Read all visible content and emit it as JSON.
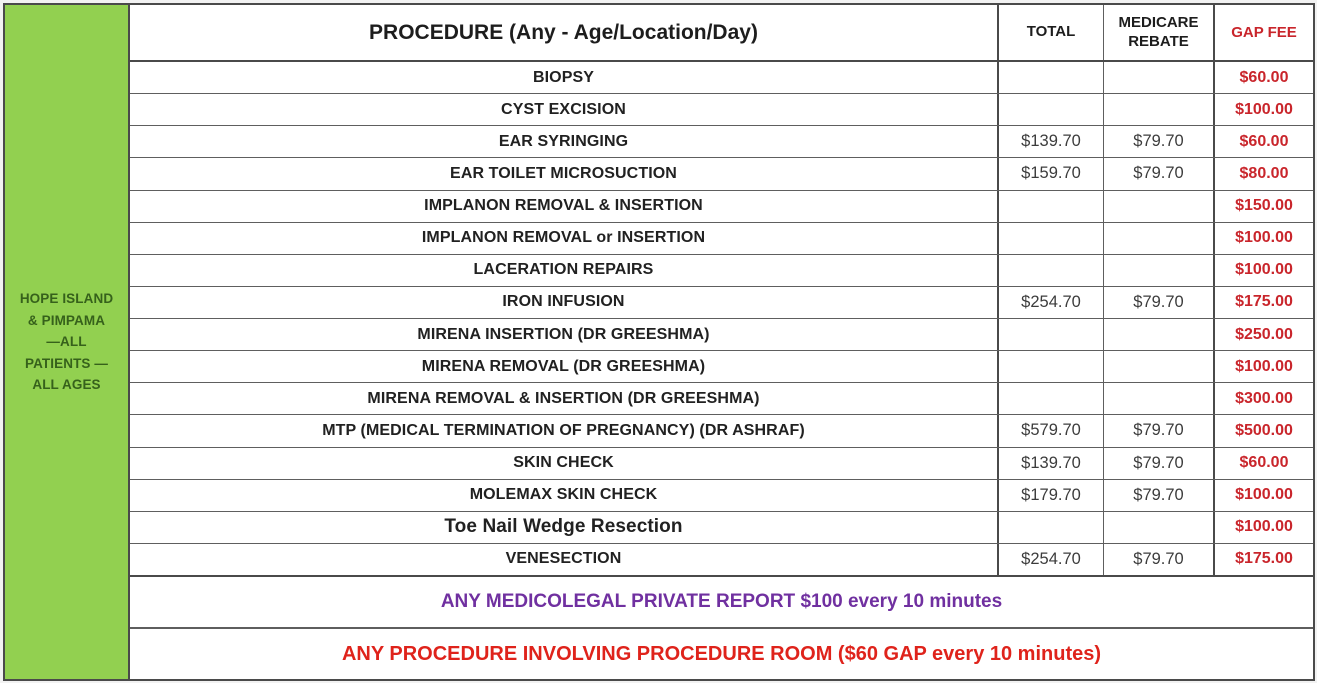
{
  "colors": {
    "green_bg": "#92d050",
    "green_text": "#36611b",
    "red": "#c9252b",
    "red_bright": "#df231b",
    "purple": "#7030a0",
    "line_strong": "#4a4a4a",
    "line_thin": "#5e5e5e"
  },
  "table": {
    "location_label_lines": [
      "HOPE ISLAND",
      "& PIMPAMA",
      "—ALL",
      "PATIENTS —",
      "ALL AGES"
    ],
    "header": {
      "procedure": "PROCEDURE (Any - Age/Location/Day)",
      "total": "TOTAL",
      "medicare_rebate": "MEDICARE REBATE",
      "gap_fee": "GAP FEE"
    },
    "rows": [
      {
        "procedure": "BIOPSY",
        "total": "",
        "rebate": "",
        "gap": "$60.00",
        "emphasis": false
      },
      {
        "procedure": "CYST EXCISION",
        "total": "",
        "rebate": "",
        "gap": "$100.00",
        "emphasis": false
      },
      {
        "procedure": "EAR SYRINGING",
        "total": "$139.70",
        "rebate": "$79.70",
        "gap": "$60.00",
        "emphasis": false
      },
      {
        "procedure": "EAR TOILET MICROSUCTION",
        "total": "$159.70",
        "rebate": "$79.70",
        "gap": "$80.00",
        "emphasis": false
      },
      {
        "procedure": "IMPLANON REMOVAL & INSERTION",
        "total": "",
        "rebate": "",
        "gap": "$150.00",
        "emphasis": false
      },
      {
        "procedure": "IMPLANON REMOVAL or INSERTION",
        "total": "",
        "rebate": "",
        "gap": "$100.00",
        "emphasis": false
      },
      {
        "procedure": "LACERATION REPAIRS",
        "total": "",
        "rebate": "",
        "gap": "$100.00",
        "emphasis": false
      },
      {
        "procedure": "IRON INFUSION",
        "total": "$254.70",
        "rebate": "$79.70",
        "gap": "$175.00",
        "emphasis": false
      },
      {
        "procedure": "MIRENA INSERTION (DR GREESHMA)",
        "total": "",
        "rebate": "",
        "gap": "$250.00",
        "emphasis": false
      },
      {
        "procedure": "MIRENA REMOVAL (DR GREESHMA)",
        "total": "",
        "rebate": "",
        "gap": "$100.00",
        "emphasis": false
      },
      {
        "procedure": "MIRENA REMOVAL & INSERTION (DR GREESHMA)",
        "total": "",
        "rebate": "",
        "gap": "$300.00",
        "emphasis": false
      },
      {
        "procedure": "MTP (MEDICAL TERMINATION OF PREGNANCY) (DR ASHRAF)",
        "total": "$579.70",
        "rebate": "$79.70",
        "gap": "$500.00",
        "emphasis": false
      },
      {
        "procedure": "SKIN CHECK",
        "total": "$139.70",
        "rebate": "$79.70",
        "gap": "$60.00",
        "emphasis": false
      },
      {
        "procedure": "MOLEMAX SKIN CHECK",
        "total": "$179.70",
        "rebate": "$79.70",
        "gap": "$100.00",
        "emphasis": false
      },
      {
        "procedure": "Toe Nail Wedge Resection",
        "total": "",
        "rebate": "",
        "gap": "$100.00",
        "emphasis": true
      },
      {
        "procedure": "VENESECTION",
        "total": "$254.70",
        "rebate": "$79.70",
        "gap": "$175.00",
        "emphasis": false
      }
    ],
    "notes": [
      {
        "text": "ANY MEDICOLEGAL PRIVATE REPORT $100 every 10 minutes",
        "style": "purple"
      },
      {
        "text": "ANY PROCEDURE INVOLVING PROCEDURE ROOM ($60 GAP every 10 minutes)",
        "style": "red"
      }
    ]
  }
}
